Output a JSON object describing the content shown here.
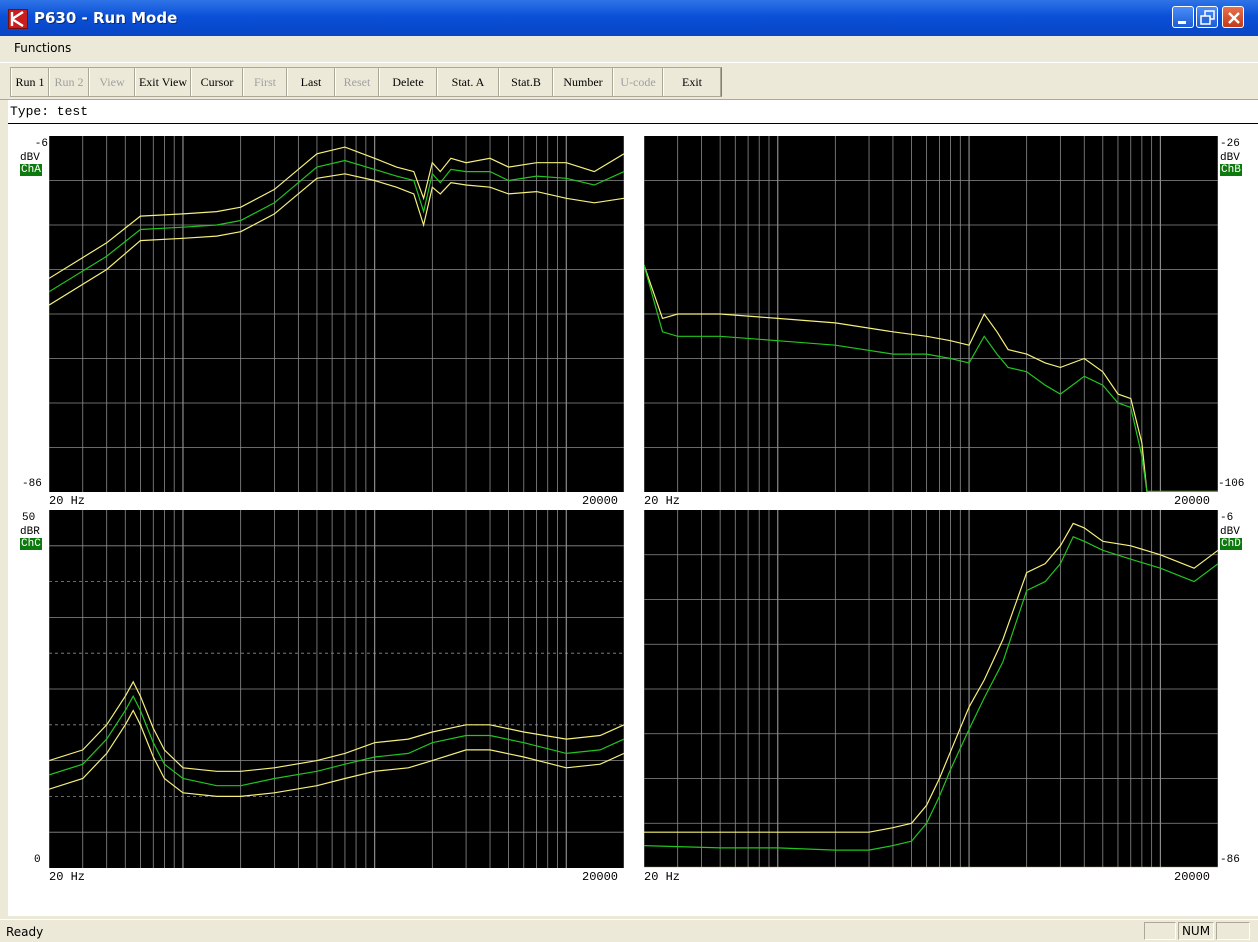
{
  "window": {
    "title": "P630 - Run Mode"
  },
  "menu": {
    "items": [
      "Functions"
    ]
  },
  "toolbar": {
    "buttons": [
      {
        "label": "Run 1",
        "enabled": true
      },
      {
        "label": "Run 2",
        "enabled": false
      },
      {
        "label": "View",
        "enabled": false
      },
      {
        "label": "Exit View",
        "enabled": true
      },
      {
        "label": "Cursor",
        "enabled": true
      },
      {
        "label": "First",
        "enabled": false
      },
      {
        "label": "Last",
        "enabled": true
      },
      {
        "label": "Reset",
        "enabled": false
      },
      {
        "label": "Delete",
        "enabled": true
      },
      {
        "label": "Stat. A",
        "enabled": true
      },
      {
        "label": "Stat.B",
        "enabled": true
      },
      {
        "label": "Number",
        "enabled": true
      },
      {
        "label": "U-code",
        "enabled": false
      },
      {
        "label": "Exit",
        "enabled": true
      }
    ]
  },
  "info": {
    "type_text": "Type: test"
  },
  "plots": {
    "a": {
      "channel": "ChA",
      "unit": "dBV",
      "ymax": "-6",
      "ymin": "-86",
      "xmin": "20 Hz",
      "xmax": "20000"
    },
    "b": {
      "channel": "ChB",
      "unit": "dBV",
      "ymax": "-26",
      "ymin": "-106",
      "xmin": "20 Hz",
      "xmax": "20000"
    },
    "c": {
      "channel": "ChC",
      "unit": "dBR",
      "ymax": "50",
      "ymin": "0",
      "xmin": "20 Hz",
      "xmax": "20000"
    },
    "d": {
      "channel": "ChD",
      "unit": "dBV",
      "ymax": "-6",
      "ymin": "-86",
      "xmin": "20 Hz",
      "xmax": "20000"
    }
  },
  "colors": {
    "plot_bg": "#000000",
    "grid": "#8c8c8c",
    "upper_lower": "#f5f07a",
    "mean": "#22c41f",
    "channel_tag": "#0d7a0d"
  },
  "chart_data": [
    {
      "type": "line",
      "channel": "ChA",
      "x_scale": "log",
      "xlim": [
        20,
        20000
      ],
      "ylim": [
        -86,
        -6
      ],
      "y_unit": "dBV",
      "x": [
        20,
        40,
        60,
        100,
        150,
        200,
        300,
        500,
        700,
        1000,
        1300,
        1600,
        1800,
        2000,
        2200,
        2500,
        3000,
        4000,
        5000,
        7000,
        10000,
        14000,
        20000
      ],
      "series": [
        {
          "values": [
            -38,
            -30,
            -24,
            -23.5,
            -23,
            -22,
            -18,
            -10,
            -8.5,
            -11,
            -13,
            -14,
            -20,
            -12,
            -14,
            -11,
            -12,
            -11,
            -13,
            -12,
            -12,
            -14,
            -10
          ]
        },
        {
          "values": [
            -41,
            -33,
            -27,
            -26.5,
            -26,
            -25,
            -21,
            -13,
            -11.5,
            -13.5,
            -15,
            -16,
            -23,
            -14.5,
            -16.5,
            -13.5,
            -14,
            -14,
            -16,
            -15,
            -15.5,
            -17,
            -14
          ]
        },
        {
          "values": [
            -44,
            -36,
            -29.5,
            -29,
            -28.5,
            -27.5,
            -23.5,
            -15.5,
            -14.5,
            -16,
            -17.5,
            -19,
            -26,
            -17.5,
            -19,
            -16.5,
            -17,
            -17.5,
            -19,
            -18.5,
            -20,
            -21,
            -20
          ]
        }
      ]
    },
    {
      "type": "line",
      "channel": "ChB",
      "x_scale": "log",
      "xlim": [
        20,
        20000
      ],
      "ylim": [
        -106,
        -26
      ],
      "y_unit": "dBV",
      "x": [
        20,
        25,
        30,
        50,
        100,
        200,
        400,
        600,
        800,
        1000,
        1200,
        1400,
        1600,
        2000,
        2500,
        3000,
        4000,
        5000,
        6000,
        7000,
        8000,
        8500,
        20000
      ],
      "series": [
        {
          "values": [
            -55,
            -67,
            -66,
            -66,
            -67,
            -68,
            -70,
            -71,
            -72,
            -73,
            -66,
            -70,
            -74,
            -75,
            -77,
            -78,
            -76,
            -79,
            -84,
            -85,
            -95,
            -106,
            -106
          ]
        },
        {
          "values": [
            -55,
            -70,
            -71,
            -71,
            -72,
            -73,
            -75,
            -75,
            -76,
            -77,
            -71,
            -75,
            -78,
            -79,
            -82,
            -84,
            -80,
            -82,
            -86,
            -87,
            -98,
            -106,
            -106
          ]
        }
      ]
    },
    {
      "type": "line",
      "channel": "ChC",
      "x_scale": "log",
      "xlim": [
        20,
        20000
      ],
      "ylim": [
        0,
        50
      ],
      "y_unit": "dBR",
      "x": [
        20,
        30,
        40,
        50,
        55,
        60,
        70,
        80,
        100,
        150,
        200,
        300,
        500,
        700,
        1000,
        1500,
        2000,
        3000,
        4000,
        6000,
        10000,
        15000,
        20000
      ],
      "series": [
        {
          "values": [
            15,
            16.5,
            20,
            24,
            26,
            24,
            19.5,
            16.5,
            14,
            13.5,
            13.5,
            14,
            15,
            16,
            17.5,
            18,
            19,
            20,
            20,
            19,
            18,
            18.5,
            20
          ]
        },
        {
          "values": [
            13,
            14.5,
            18,
            22,
            24,
            22,
            17.5,
            14.5,
            12.5,
            11.5,
            11.5,
            12.5,
            13.5,
            14.5,
            15.5,
            16,
            17.5,
            18.5,
            18.5,
            17.5,
            16,
            16.5,
            18
          ]
        },
        {
          "values": [
            11,
            12.5,
            16,
            20,
            22,
            20,
            15.5,
            12.5,
            10.5,
            10,
            10,
            10.5,
            11.5,
            12.5,
            13.5,
            14,
            15,
            16.5,
            16.5,
            15.5,
            14,
            14.5,
            16
          ]
        }
      ]
    },
    {
      "type": "line",
      "channel": "ChD",
      "x_scale": "log",
      "xlim": [
        20,
        20000
      ],
      "ylim": [
        -86,
        -6
      ],
      "y_unit": "dBV",
      "x": [
        20,
        50,
        100,
        200,
        300,
        400,
        500,
        600,
        700,
        800,
        1000,
        1200,
        1500,
        2000,
        2500,
        3000,
        3500,
        4000,
        5000,
        7000,
        10000,
        15000,
        20000
      ],
      "series": [
        {
          "values": [
            -78,
            -78,
            -78,
            -78,
            -78,
            -77,
            -76,
            -72,
            -66,
            -60,
            -50,
            -44,
            -35,
            -20,
            -18,
            -14,
            -9,
            -10,
            -13,
            -14,
            -16,
            -19,
            -15
          ]
        },
        {
          "values": [
            -81,
            -81.5,
            -81.5,
            -82,
            -82,
            -81,
            -80,
            -76,
            -70,
            -64,
            -55,
            -48,
            -40,
            -24,
            -22,
            -18,
            -12,
            -13,
            -15,
            -17,
            -19,
            -22,
            -18
          ]
        },
        {
          "values": [
            -86,
            -86,
            -86,
            -86,
            -86,
            -86,
            -86,
            -86,
            -86,
            -86,
            -86,
            -86,
            -86,
            -86,
            -86,
            -86,
            -86,
            -86,
            -86,
            -86,
            -86,
            -86,
            -86
          ]
        }
      ]
    }
  ]
}
